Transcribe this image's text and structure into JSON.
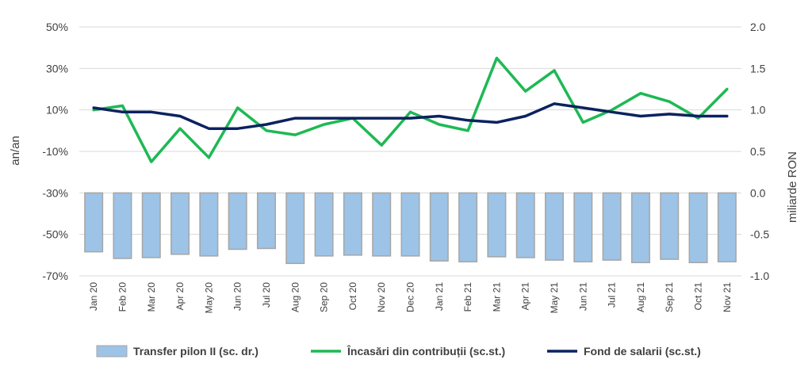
{
  "chart_data": {
    "type": "bar+line",
    "categories": [
      "Jan 20",
      "Feb 20",
      "Mar 20",
      "Apr 20",
      "May 20",
      "Jun 20",
      "Jul 20",
      "Aug 20",
      "Sep 20",
      "Oct 20",
      "Nov 20",
      "Dec 20",
      "Jan 21",
      "Feb 21",
      "Mar 21",
      "Apr 21",
      "May 21",
      "Jun 21",
      "Jul 21",
      "Aug 21",
      "Sep 21",
      "Oct 21",
      "Nov 21"
    ],
    "left_axis": {
      "label": "an/an",
      "ylim": [
        -70,
        50
      ],
      "ticks": [
        "50%",
        "30%",
        "10%",
        "-10%",
        "-30%",
        "-50%",
        "-70%"
      ]
    },
    "right_axis": {
      "label": "miliarde RON",
      "ylim": [
        -1.0,
        2.0
      ],
      "ticks": [
        "2.0",
        "1.5",
        "1.0",
        "0.5",
        "0.0",
        "-0.5",
        "-1.0"
      ]
    },
    "series": [
      {
        "name": "Transfer pilon II (sc. dr.)",
        "type": "bar",
        "axis": "right",
        "color": "#9dc3e6",
        "values": [
          -0.71,
          -0.79,
          -0.78,
          -0.74,
          -0.76,
          -0.68,
          -0.67,
          -0.85,
          -0.76,
          -0.75,
          -0.76,
          -0.76,
          -0.82,
          -0.83,
          -0.77,
          -0.78,
          -0.81,
          -0.83,
          -0.81,
          -0.84,
          -0.8,
          -0.84,
          -0.83
        ]
      },
      {
        "name": "Încasări din contribuții (sc.st.)",
        "type": "line",
        "axis": "left",
        "color": "#1db954",
        "values": [
          10,
          12,
          -15,
          1,
          -13,
          11,
          0,
          -2,
          3,
          6,
          -7,
          9,
          3,
          0,
          35,
          19,
          29,
          4,
          10,
          18,
          14,
          6,
          20
        ]
      },
      {
        "name": "Fond de salarii (sc.st.)",
        "type": "line",
        "axis": "left",
        "color": "#0b2260",
        "values": [
          11,
          9,
          9,
          7,
          1,
          1,
          3,
          6,
          6,
          6,
          6,
          6,
          7,
          5,
          4,
          7,
          13,
          11,
          9,
          7,
          8,
          7,
          7
        ]
      }
    ],
    "grid": true,
    "legend_position": "bottom"
  }
}
